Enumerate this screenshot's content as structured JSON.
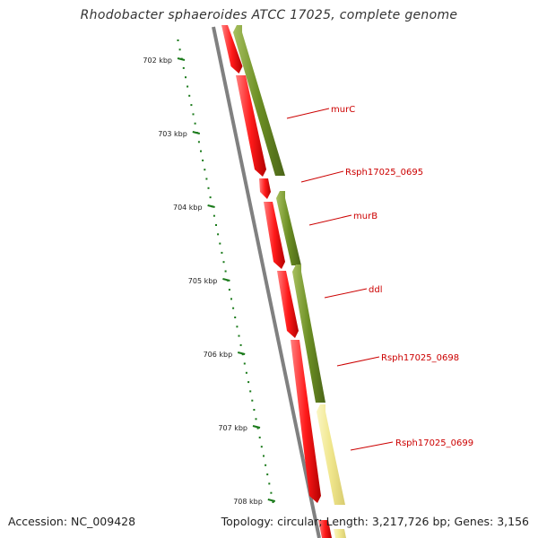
{
  "title": "Rhodobacter sphaeroides ATCC 17025, complete genome",
  "footer": {
    "accession": "Accession: NC_009428",
    "summary": "Topology: circular; Length: 3,217,726 bp; Genes: 3,156"
  },
  "colors": {
    "backbone": "#808080",
    "forward_cds": "#ff1a1a",
    "reverse_cds": "#6b8e23",
    "highlight_cds": "#f0e68c",
    "tick": "#1a7a1a",
    "label": "#cc0000"
  },
  "ticks": [
    "702 kbp",
    "703 kbp",
    "704 kbp",
    "705 kbp",
    "706 kbp",
    "707 kbp",
    "708 kbp"
  ],
  "genes": [
    "murC",
    "Rsph17025_0695",
    "murB",
    "ddl",
    "Rsph17025_0698",
    "Rsph17025_0699"
  ]
}
